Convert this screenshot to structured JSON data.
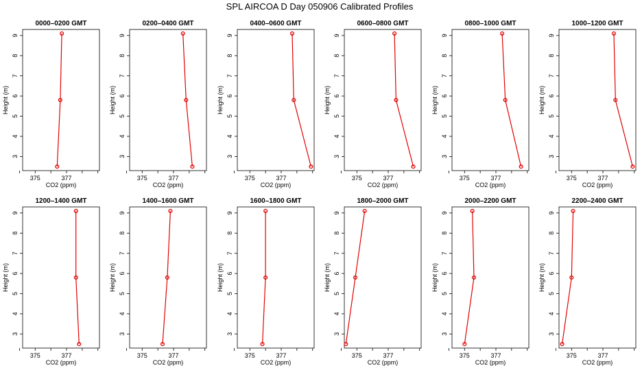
{
  "title": "SPL AIRCOA D  Day 050906  Calibrated Profiles",
  "colors": {
    "series": "#e00000",
    "axes": "#000000"
  },
  "chart_data": [
    {
      "type": "line",
      "title": "0000–0200 GMT",
      "xlabel": "CO2 (ppm)",
      "ylabel": "Height (m)",
      "xlim": [
        374.2,
        379.1
      ],
      "ylim": [
        2.3,
        9.3
      ],
      "xticks": [
        374,
        375,
        376,
        377,
        378,
        379
      ],
      "xtick_labels": [
        "375",
        "377"
      ],
      "yticks": [
        3,
        4,
        5,
        6,
        7,
        8,
        9
      ],
      "x": [
        376.4,
        376.6,
        376.7
      ],
      "y": [
        2.5,
        5.8,
        9.1
      ]
    },
    {
      "type": "line",
      "title": "0200–0400 GMT",
      "xlabel": "CO2 (ppm)",
      "ylabel": "Height (m)",
      "xlim": [
        374.2,
        379.1
      ],
      "ylim": [
        2.3,
        9.3
      ],
      "xticks": [
        374,
        375,
        376,
        377,
        378,
        379
      ],
      "xtick_labels": [
        "375",
        "377"
      ],
      "yticks": [
        3,
        4,
        5,
        6,
        7,
        8,
        9
      ],
      "x": [
        378.2,
        377.8,
        377.6
      ],
      "y": [
        2.5,
        5.8,
        9.1
      ]
    },
    {
      "type": "line",
      "title": "0400–0600 GMT",
      "xlabel": "CO2 (ppm)",
      "ylabel": "Height (m)",
      "xlim": [
        374.2,
        379.1
      ],
      "ylim": [
        2.3,
        9.3
      ],
      "xticks": [
        374,
        375,
        376,
        377,
        378,
        379
      ],
      "xtick_labels": [
        "375",
        "377"
      ],
      "yticks": [
        3,
        4,
        5,
        6,
        7,
        8,
        9
      ],
      "x": [
        378.9,
        377.8,
        377.7
      ],
      "y": [
        2.5,
        5.8,
        9.1
      ]
    },
    {
      "type": "line",
      "title": "0600–0800 GMT",
      "xlabel": "CO2 (ppm)",
      "ylabel": "Height (m)",
      "xlim": [
        374.2,
        379.1
      ],
      "ylim": [
        2.3,
        9.3
      ],
      "xticks": [
        374,
        375,
        376,
        377,
        378,
        379
      ],
      "xtick_labels": [
        "375",
        "377"
      ],
      "yticks": [
        3,
        4,
        5,
        6,
        7,
        8,
        9
      ],
      "x": [
        378.6,
        377.5,
        377.4
      ],
      "y": [
        2.5,
        5.8,
        9.1
      ]
    },
    {
      "type": "line",
      "title": "0800–1000 GMT",
      "xlabel": "CO2 (ppm)",
      "ylabel": "Height (m)",
      "xlim": [
        374.2,
        379.1
      ],
      "ylim": [
        2.3,
        9.3
      ],
      "xticks": [
        374,
        375,
        376,
        377,
        378,
        379
      ],
      "xtick_labels": [
        "375",
        "377"
      ],
      "yticks": [
        3,
        4,
        5,
        6,
        7,
        8,
        9
      ],
      "x": [
        378.6,
        377.6,
        377.4
      ],
      "y": [
        2.5,
        5.8,
        9.1
      ]
    },
    {
      "type": "line",
      "title": "1000–1200 GMT",
      "xlabel": "CO2 (ppm)",
      "ylabel": "Height (m)",
      "xlim": [
        374.2,
        379.1
      ],
      "ylim": [
        2.3,
        9.3
      ],
      "xticks": [
        374,
        375,
        376,
        377,
        378,
        379
      ],
      "xtick_labels": [
        "375",
        "377"
      ],
      "yticks": [
        3,
        4,
        5,
        6,
        7,
        8,
        9
      ],
      "x": [
        378.9,
        377.8,
        377.7
      ],
      "y": [
        2.5,
        5.8,
        9.1
      ]
    },
    {
      "type": "line",
      "title": "1200–1400 GMT",
      "xlabel": "CO2 (ppm)",
      "ylabel": "Height (m)",
      "xlim": [
        374.2,
        379.1
      ],
      "ylim": [
        2.3,
        9.3
      ],
      "xticks": [
        374,
        375,
        376,
        377,
        378,
        379
      ],
      "xtick_labels": [
        "375",
        "377"
      ],
      "yticks": [
        3,
        4,
        5,
        6,
        7,
        8,
        9
      ],
      "x": [
        377.8,
        377.6,
        377.6
      ],
      "y": [
        2.5,
        5.8,
        9.1
      ]
    },
    {
      "type": "line",
      "title": "1400–1600 GMT",
      "xlabel": "CO2 (ppm)",
      "ylabel": "Height (m)",
      "xlim": [
        374.2,
        379.1
      ],
      "ylim": [
        2.3,
        9.3
      ],
      "xticks": [
        374,
        375,
        376,
        377,
        378,
        379
      ],
      "xtick_labels": [
        "375",
        "377"
      ],
      "yticks": [
        3,
        4,
        5,
        6,
        7,
        8,
        9
      ],
      "x": [
        376.3,
        376.6,
        376.8
      ],
      "y": [
        2.5,
        5.8,
        9.1
      ]
    },
    {
      "type": "line",
      "title": "1600–1800 GMT",
      "xlabel": "CO2 (ppm)",
      "ylabel": "Height (m)",
      "xlim": [
        374.2,
        379.1
      ],
      "ylim": [
        2.3,
        9.3
      ],
      "xticks": [
        374,
        375,
        376,
        377,
        378,
        379
      ],
      "xtick_labels": [
        "375",
        "377"
      ],
      "yticks": [
        3,
        4,
        5,
        6,
        7,
        8,
        9
      ],
      "x": [
        375.8,
        376.0,
        376.0
      ],
      "y": [
        2.5,
        5.8,
        9.1
      ]
    },
    {
      "type": "line",
      "title": "1800–2000 GMT",
      "xlabel": "CO2 (ppm)",
      "ylabel": "Height (m)",
      "xlim": [
        374.2,
        379.1
      ],
      "ylim": [
        2.3,
        9.3
      ],
      "xticks": [
        374,
        375,
        376,
        377,
        378,
        379
      ],
      "xtick_labels": [
        "375",
        "377"
      ],
      "yticks": [
        3,
        4,
        5,
        6,
        7,
        8,
        9
      ],
      "x": [
        374.3,
        374.9,
        375.5
      ],
      "y": [
        2.5,
        5.8,
        9.1
      ]
    },
    {
      "type": "line",
      "title": "2000–2200 GMT",
      "xlabel": "CO2 (ppm)",
      "ylabel": "Height (m)",
      "xlim": [
        374.2,
        379.1
      ],
      "ylim": [
        2.3,
        9.3
      ],
      "xticks": [
        374,
        375,
        376,
        377,
        378,
        379
      ],
      "xtick_labels": [
        "375",
        "377"
      ],
      "yticks": [
        3,
        4,
        5,
        6,
        7,
        8,
        9
      ],
      "x": [
        375.0,
        375.6,
        375.5
      ],
      "y": [
        2.5,
        5.8,
        9.1
      ]
    },
    {
      "type": "line",
      "title": "2200–2400 GMT",
      "xlabel": "CO2 (ppm)",
      "ylabel": "Height (m)",
      "xlim": [
        374.2,
        379.1
      ],
      "ylim": [
        2.3,
        9.3
      ],
      "xticks": [
        374,
        375,
        376,
        377,
        378,
        379
      ],
      "xtick_labels": [
        "375",
        "377"
      ],
      "yticks": [
        3,
        4,
        5,
        6,
        7,
        8,
        9
      ],
      "x": [
        374.4,
        375.0,
        375.1
      ],
      "y": [
        2.5,
        5.8,
        9.1
      ]
    }
  ]
}
